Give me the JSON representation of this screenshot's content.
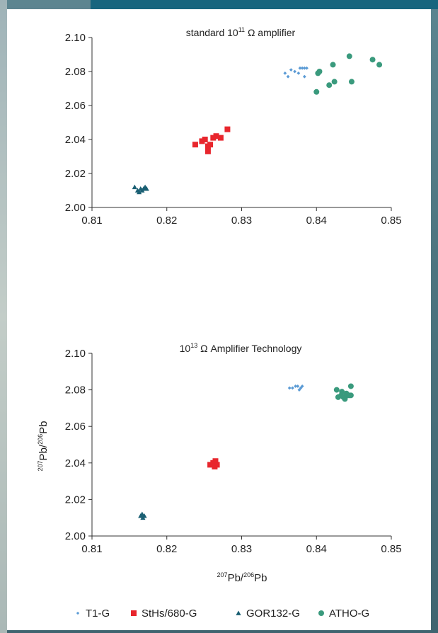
{
  "chart_data": [
    {
      "type": "scatter",
      "title_prefix": "standard 10",
      "title_sup": "11",
      "title_suffix": " Ω amplifier",
      "xlim": [
        0.81,
        0.85
      ],
      "ylim": [
        2.0,
        2.1
      ],
      "x_ticks": [
        "0.81",
        "0.82",
        "0.83",
        "0.84",
        "0.85"
      ],
      "y_ticks": [
        "2.00",
        "2.02",
        "2.04",
        "2.06",
        "2.08",
        "2.10"
      ],
      "series": [
        {
          "name": "T1-G",
          "color": "#5b9bd5",
          "marker": "diamond",
          "points": [
            [
              0.8358,
              2.079
            ],
            [
              0.8362,
              2.077
            ],
            [
              0.8366,
              2.081
            ],
            [
              0.8371,
              2.08
            ],
            [
              0.8376,
              2.079
            ],
            [
              0.8378,
              2.082
            ],
            [
              0.8381,
              2.082
            ],
            [
              0.8384,
              2.077
            ],
            [
              0.8384,
              2.082
            ],
            [
              0.8387,
              2.082
            ]
          ]
        },
        {
          "name": "StHs/680-G",
          "color": "#e8262d",
          "marker": "square",
          "points": [
            [
              0.8238,
              2.037
            ],
            [
              0.8247,
              2.039
            ],
            [
              0.8251,
              2.04
            ],
            [
              0.8255,
              2.036
            ],
            [
              0.8255,
              2.033
            ],
            [
              0.8258,
              2.037
            ],
            [
              0.8262,
              2.041
            ],
            [
              0.8266,
              2.042
            ],
            [
              0.8272,
              2.041
            ],
            [
              0.8281,
              2.046
            ]
          ]
        },
        {
          "name": "GOR132-G",
          "color": "#1a5f73",
          "marker": "triangle",
          "points": [
            [
              0.8157,
              2.012
            ],
            [
              0.8161,
              2.01
            ],
            [
              0.8163,
              2.009
            ],
            [
              0.8165,
              2.011
            ],
            [
              0.8167,
              2.01
            ],
            [
              0.8169,
              2.011
            ],
            [
              0.8171,
              2.012
            ],
            [
              0.8173,
              2.011
            ]
          ]
        },
        {
          "name": "ATHO-G",
          "color": "#3a9a7d",
          "marker": "circle",
          "points": [
            [
              0.84,
              2.068
            ],
            [
              0.8402,
              2.079
            ],
            [
              0.8404,
              2.08
            ],
            [
              0.8417,
              2.072
            ],
            [
              0.8422,
              2.084
            ],
            [
              0.8424,
              2.074
            ],
            [
              0.8444,
              2.089
            ],
            [
              0.8447,
              2.074
            ],
            [
              0.8475,
              2.087
            ],
            [
              0.8484,
              2.084
            ]
          ]
        }
      ]
    },
    {
      "type": "scatter",
      "title_prefix": "10",
      "title_sup": "13",
      "title_suffix": " Ω Amplifier Technology",
      "xlim": [
        0.81,
        0.85
      ],
      "ylim": [
        2.0,
        2.1
      ],
      "x_ticks": [
        "0.81",
        "0.82",
        "0.83",
        "0.84",
        "0.85"
      ],
      "y_ticks": [
        "2.00",
        "2.02",
        "2.04",
        "2.06",
        "2.08",
        "2.10"
      ],
      "series": [
        {
          "name": "T1-G",
          "color": "#5b9bd5",
          "marker": "diamond",
          "points": [
            [
              0.8364,
              2.081
            ],
            [
              0.8368,
              2.081
            ],
            [
              0.8372,
              2.082
            ],
            [
              0.8375,
              2.082
            ],
            [
              0.8377,
              2.08
            ],
            [
              0.8379,
              2.081
            ],
            [
              0.8381,
              2.082
            ]
          ]
        },
        {
          "name": "StHs/680-G",
          "color": "#e8262d",
          "marker": "square",
          "points": [
            [
              0.8258,
              2.039
            ],
            [
              0.8262,
              2.04
            ],
            [
              0.8264,
              2.038
            ],
            [
              0.8265,
              2.041
            ],
            [
              0.8267,
              2.039
            ]
          ]
        },
        {
          "name": "GOR132-G",
          "color": "#1a5f73",
          "marker": "triangle",
          "points": [
            [
              0.8165,
              2.011
            ],
            [
              0.8167,
              2.012
            ],
            [
              0.8168,
              2.01
            ],
            [
              0.817,
              2.011
            ]
          ]
        },
        {
          "name": "ATHO-G",
          "color": "#3a9a7d",
          "marker": "circle",
          "points": [
            [
              0.8427,
              2.08
            ],
            [
              0.8429,
              2.076
            ],
            [
              0.8433,
              2.077
            ],
            [
              0.8434,
              2.079
            ],
            [
              0.8436,
              2.076
            ],
            [
              0.8438,
              2.075
            ],
            [
              0.844,
              2.078
            ],
            [
              0.8442,
              2.077
            ],
            [
              0.8444,
              2.077
            ],
            [
              0.8446,
              2.082
            ],
            [
              0.8446,
              2.077
            ]
          ]
        }
      ]
    }
  ],
  "axes": {
    "y_label": {
      "main": "Pb/",
      "sup_a": "207",
      "sup_b": "206",
      "tail": "Pb"
    },
    "x_label": {
      "main": "Pb/",
      "sup_a": "207",
      "sup_b": "206",
      "tail": "Pb"
    }
  },
  "legend": {
    "items": [
      {
        "label": "T1-G",
        "color": "#5b9bd5",
        "marker": "diamond"
      },
      {
        "label": "StHs/680-G",
        "color": "#e8262d",
        "marker": "square"
      },
      {
        "label": "GOR132-G",
        "color": "#1a5f73",
        "marker": "triangle"
      },
      {
        "label": "ATHO-G",
        "color": "#3a9a7d",
        "marker": "circle"
      }
    ]
  },
  "colors": {
    "background": "#4d7580",
    "top_band": "#17657e",
    "panel": "#ffffff"
  }
}
